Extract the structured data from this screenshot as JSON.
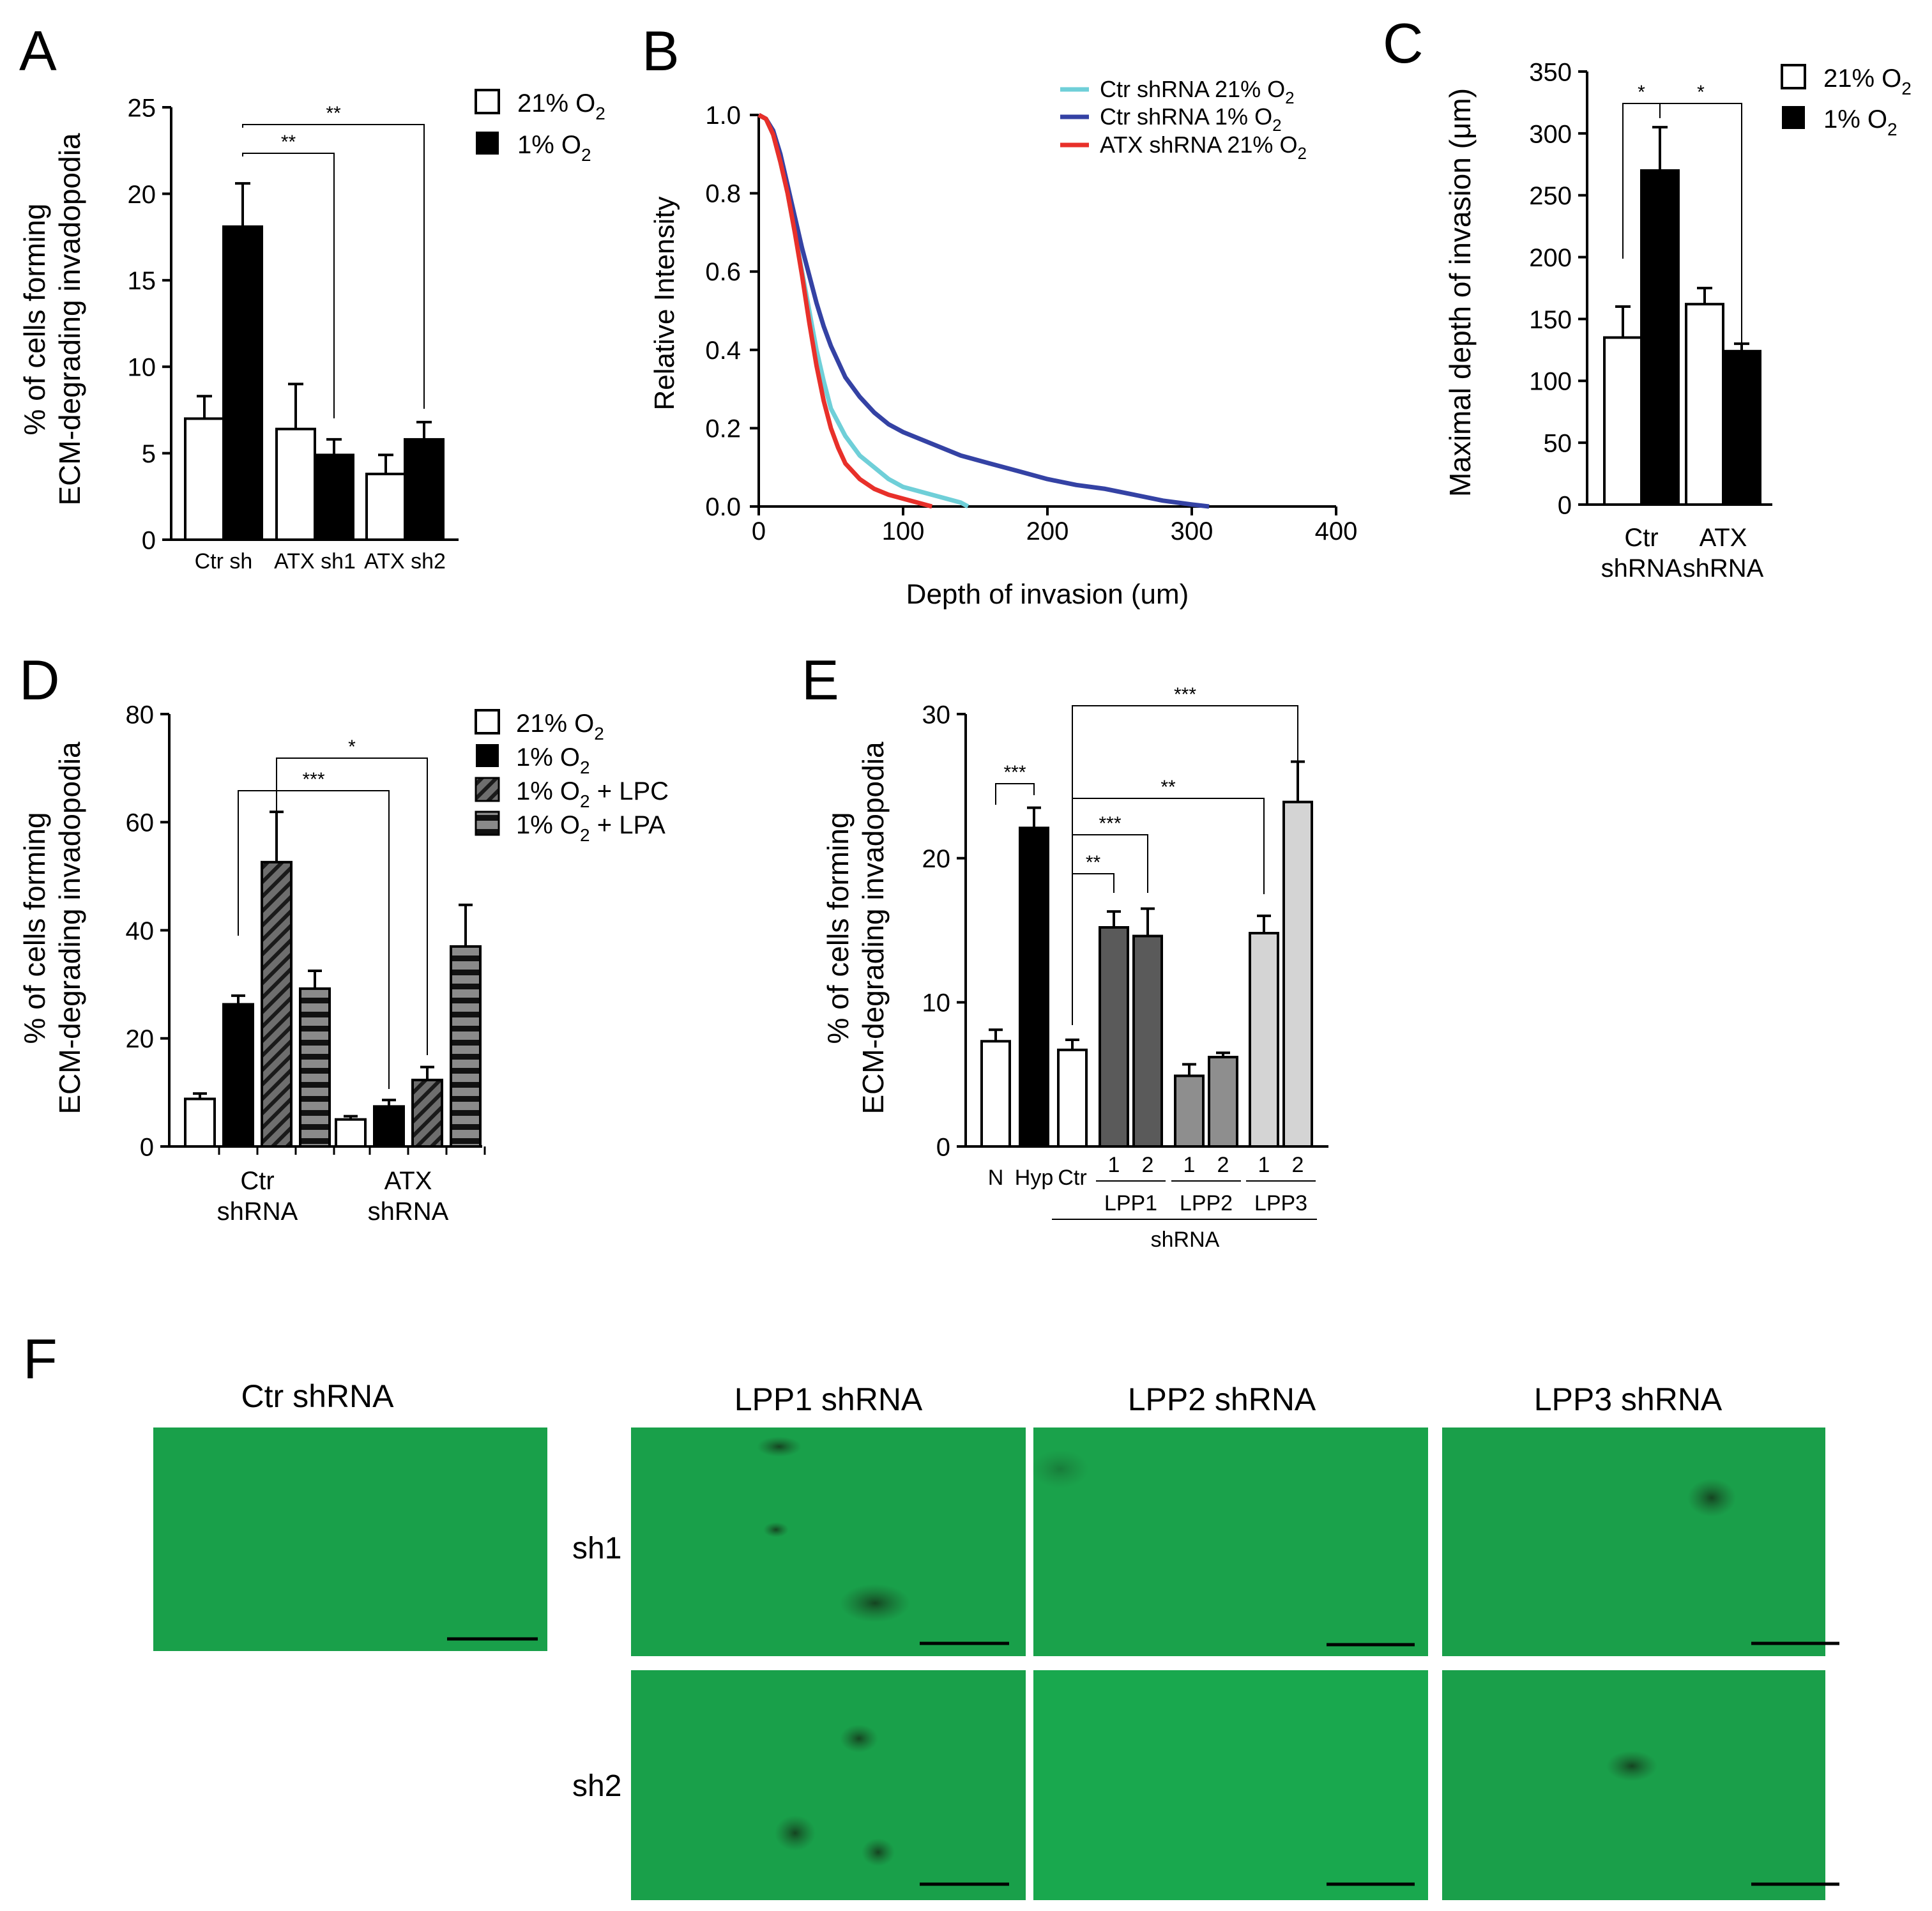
{
  "figure": {
    "panel_letters": [
      "A",
      "B",
      "C",
      "D",
      "E",
      "F"
    ]
  },
  "chart_data": [
    {
      "panel": "A",
      "type": "bar",
      "ylabel_lines": [
        "% of cells forming",
        "ECM-degrading invadopodia"
      ],
      "ylim": [
        0,
        25
      ],
      "yticks": [
        0,
        5,
        10,
        15,
        20,
        25
      ],
      "categories": [
        "Ctr sh",
        "ATX sh1",
        "ATX sh2"
      ],
      "series": [
        {
          "name": "21% O2",
          "values": [
            7.0,
            6.4,
            3.8
          ],
          "errors": [
            1.3,
            2.6,
            1.1
          ]
        },
        {
          "name": "1% O2",
          "values": [
            18.1,
            4.9,
            5.8
          ],
          "errors": [
            2.5,
            0.9,
            1.0
          ]
        }
      ],
      "significance": [
        "**",
        "**"
      ]
    },
    {
      "panel": "B",
      "type": "line",
      "xlabel": "Depth of invasion (um)",
      "ylabel": "Relative Intensity",
      "xlim": [
        0,
        400
      ],
      "ylim": [
        0,
        1.0
      ],
      "xticks": [
        "0",
        "100",
        "200",
        "300",
        "400"
      ],
      "yticks": [
        "0.0",
        "0.2",
        "0.4",
        "0.6",
        "0.8",
        "1.0"
      ],
      "series": [
        {
          "name": "Ctr shRNA 21% O2",
          "color": "#6fcfd8",
          "x": [
            0,
            5,
            10,
            15,
            20,
            25,
            30,
            35,
            40,
            45,
            50,
            60,
            70,
            80,
            90,
            100,
            110,
            120,
            130,
            140,
            145
          ],
          "y": [
            1.0,
            0.99,
            0.95,
            0.88,
            0.8,
            0.7,
            0.6,
            0.5,
            0.4,
            0.32,
            0.25,
            0.18,
            0.13,
            0.1,
            0.07,
            0.05,
            0.04,
            0.03,
            0.02,
            0.01,
            0.0
          ]
        },
        {
          "name": "Ctr shRNA 1% O2",
          "color": "#3442a4",
          "x": [
            0,
            5,
            10,
            15,
            20,
            25,
            30,
            35,
            40,
            45,
            50,
            55,
            60,
            70,
            80,
            90,
            100,
            120,
            140,
            160,
            180,
            200,
            220,
            240,
            260,
            280,
            300,
            312
          ],
          "y": [
            1.0,
            0.99,
            0.96,
            0.9,
            0.82,
            0.74,
            0.66,
            0.59,
            0.52,
            0.46,
            0.41,
            0.37,
            0.33,
            0.28,
            0.24,
            0.21,
            0.19,
            0.16,
            0.13,
            0.11,
            0.09,
            0.07,
            0.055,
            0.045,
            0.03,
            0.015,
            0.005,
            0.0
          ]
        },
        {
          "name": "ATX shRNA 21% O2",
          "color": "#e8302a",
          "x": [
            0,
            5,
            10,
            15,
            20,
            25,
            30,
            35,
            40,
            45,
            50,
            55,
            60,
            70,
            80,
            90,
            100,
            110,
            120
          ],
          "y": [
            1.0,
            0.99,
            0.95,
            0.88,
            0.8,
            0.7,
            0.59,
            0.47,
            0.36,
            0.27,
            0.2,
            0.15,
            0.11,
            0.07,
            0.045,
            0.03,
            0.02,
            0.01,
            0.0
          ]
        }
      ]
    },
    {
      "panel": "C",
      "type": "bar",
      "ylabel": "Maximal depth of invasion (μm)",
      "ylim": [
        0,
        350
      ],
      "yticks": [
        0,
        50,
        100,
        150,
        200,
        250,
        300,
        350
      ],
      "categories": [
        "Ctr shRNA",
        "ATX shRNA"
      ],
      "category_lines": [
        [
          "Ctr",
          "shRNA"
        ],
        [
          "ATX",
          "shRNA"
        ]
      ],
      "series": [
        {
          "name": "21% O2",
          "values": [
            135,
            162
          ],
          "errors": [
            25,
            13
          ]
        },
        {
          "name": "1% O2",
          "values": [
            270,
            124
          ],
          "errors": [
            35,
            6
          ]
        }
      ],
      "significance": [
        "*",
        "*"
      ]
    },
    {
      "panel": "D",
      "type": "bar",
      "ylabel_lines": [
        "% of cells forming",
        "ECM-degrading invadopodia"
      ],
      "ylim": [
        0,
        80
      ],
      "yticks": [
        0,
        20,
        40,
        60,
        80
      ],
      "categories": [
        "Ctr shRNA",
        "ATX shRNA"
      ],
      "category_lines": [
        [
          "Ctr",
          "shRNA"
        ],
        [
          "ATX",
          "shRNA"
        ]
      ],
      "series": [
        {
          "name": "21% O2",
          "values": [
            8.8,
            5.0
          ],
          "errors": [
            1.0,
            0.6
          ]
        },
        {
          "name": "1% O2",
          "values": [
            26.3,
            7.4
          ],
          "errors": [
            1.6,
            1.2
          ]
        },
        {
          "name": "1% O2 + LPC",
          "values": [
            52.6,
            12.3
          ],
          "errors": [
            9.3,
            2.4
          ]
        },
        {
          "name": "1% O2 + LPA",
          "values": [
            29.2,
            37.0
          ],
          "errors": [
            3.3,
            7.7
          ]
        }
      ],
      "significance": [
        "***",
        "*"
      ]
    },
    {
      "panel": "E",
      "type": "bar",
      "ylabel_lines": [
        "% of cells forming",
        "ECM-degrading invadopodia"
      ],
      "ylim": [
        0,
        30
      ],
      "yticks": [
        0,
        10,
        20,
        30
      ],
      "categories": [
        "N",
        "Hyp",
        "Ctr",
        "LPP1 1",
        "LPP1 2",
        "LPP2 1",
        "LPP2 2",
        "LPP3 1",
        "LPP3 2"
      ],
      "values": [
        7.3,
        22.1,
        6.7,
        15.2,
        14.6,
        4.9,
        6.2,
        14.8,
        23.9
      ],
      "errors": [
        0.8,
        1.4,
        0.7,
        1.1,
        1.9,
        0.8,
        0.3,
        1.2,
        2.8
      ],
      "tick_labels": [
        "N",
        "Hyp",
        "Ctr",
        "1",
        "2",
        "1",
        "2",
        "1",
        "2"
      ],
      "group_labels": [
        "LPP1",
        "LPP2",
        "LPP3"
      ],
      "shrna_label": "shRNA",
      "significance": [
        "***",
        "**",
        "***",
        "**",
        "***"
      ]
    }
  ],
  "legends": {
    "A": [
      "21% O",
      "1% O"
    ],
    "C": [
      "21% O",
      "1% O"
    ],
    "D": [
      "21% O",
      "1% O",
      "1% O",
      "1% O"
    ],
    "D_suffix": [
      "",
      "",
      " + LPC",
      " + LPA"
    ],
    "B": [
      "Ctr shRNA 21% O",
      "Ctr shRNA 1% O",
      "ATX shRNA 21% O"
    ],
    "subscript": "2"
  },
  "micrographs": {
    "ctr_title": "Ctr shRNA",
    "column_titles": [
      "LPP1 shRNA",
      "LPP2 shRNA",
      "LPP3 shRNA"
    ],
    "row_labels": [
      "sh1",
      "sh2"
    ]
  }
}
